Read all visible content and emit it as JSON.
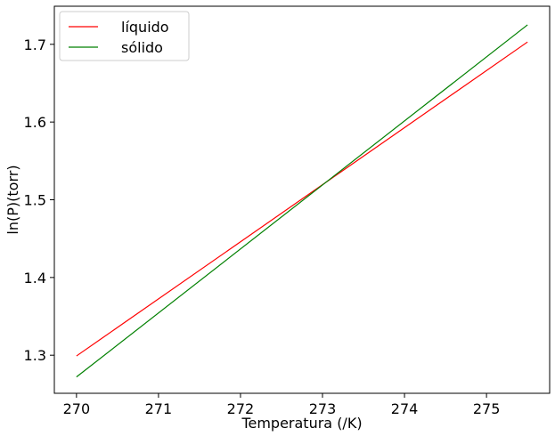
{
  "chart_data": {
    "type": "line",
    "title": "",
    "xlabel": "Temperatura (/K)",
    "ylabel": "ln(P)(torr)",
    "xlim": [
      269.73,
      275.77
    ],
    "ylim": [
      1.251,
      1.749
    ],
    "xticks": [
      270,
      271,
      272,
      273,
      274,
      275
    ],
    "yticks": [
      1.3,
      1.4,
      1.5,
      1.6,
      1.7
    ],
    "xtick_labels": [
      "270",
      "271",
      "272",
      "273",
      "274",
      "275"
    ],
    "ytick_labels": [
      "1.3",
      "1.4",
      "1.5",
      "1.6",
      "1.7"
    ],
    "grid": false,
    "legend_position": "top-left",
    "series": [
      {
        "name": "líquido",
        "color": "#ff0000",
        "x": [
          270.0,
          275.5
        ],
        "y": [
          1.299,
          1.703
        ]
      },
      {
        "name": "sólido",
        "color": "#008000",
        "x": [
          270.0,
          275.5
        ],
        "y": [
          1.272,
          1.725
        ]
      }
    ]
  }
}
